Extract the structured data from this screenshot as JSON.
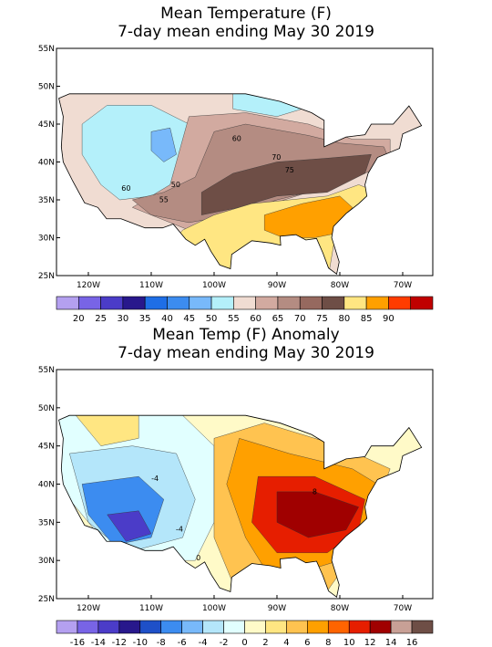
{
  "panels": [
    {
      "title": [
        "Mean Temperature (F)",
        "7-day mean ending May 30 2019"
      ],
      "lat_labels": [
        "55N",
        "50N",
        "45N",
        "40N",
        "35N",
        "30N",
        "25N"
      ],
      "lon_labels": [
        "120W",
        "110W",
        "100W",
        "90W",
        "80W",
        "70W"
      ],
      "colorbar_labels": [
        20,
        25,
        30,
        35,
        40,
        45,
        50,
        55,
        60,
        65,
        70,
        75,
        80,
        85,
        90
      ],
      "colorbar_colors": [
        "#b4a0f0",
        "#7864e6",
        "#4b3cc8",
        "#28188c",
        "#1e6ee6",
        "#3c8cf0",
        "#78b9fa",
        "#b4f0fa",
        "#f0dcd2",
        "#d2aaa0",
        "#b48c82",
        "#96695f",
        "#6e4e46",
        "#ffe682",
        "#ffa000",
        "#ff3c00",
        "#c00000"
      ],
      "contour_labels": [
        "60",
        "70",
        "75",
        "50",
        "55",
        "60"
      ]
    },
    {
      "title": [
        "Mean Temp (F) Anomaly",
        "7-day mean ending May 30 2019"
      ],
      "lat_labels": [
        "55N",
        "50N",
        "45N",
        "40N",
        "35N",
        "30N",
        "25N"
      ],
      "lon_labels": [
        "120W",
        "110W",
        "100W",
        "90W",
        "80W",
        "70W"
      ],
      "colorbar_labels": [
        -16,
        -14,
        -12,
        -10,
        -8,
        -6,
        -4,
        -2,
        0,
        2,
        4,
        6,
        8,
        10,
        12,
        14,
        16
      ],
      "colorbar_colors": [
        "#b4a0f0",
        "#7864e6",
        "#4b3cc8",
        "#28188c",
        "#1e50c8",
        "#3c8cf0",
        "#78b9fa",
        "#b4e6fa",
        "#e1ffff",
        "#fffac8",
        "#ffe682",
        "#ffc350",
        "#ffa000",
        "#ff6400",
        "#e61e00",
        "#a00000",
        "#c8a096",
        "#6e4e46"
      ],
      "contour_labels": [
        "-4",
        "-4",
        "0",
        "8"
      ]
    }
  ]
}
